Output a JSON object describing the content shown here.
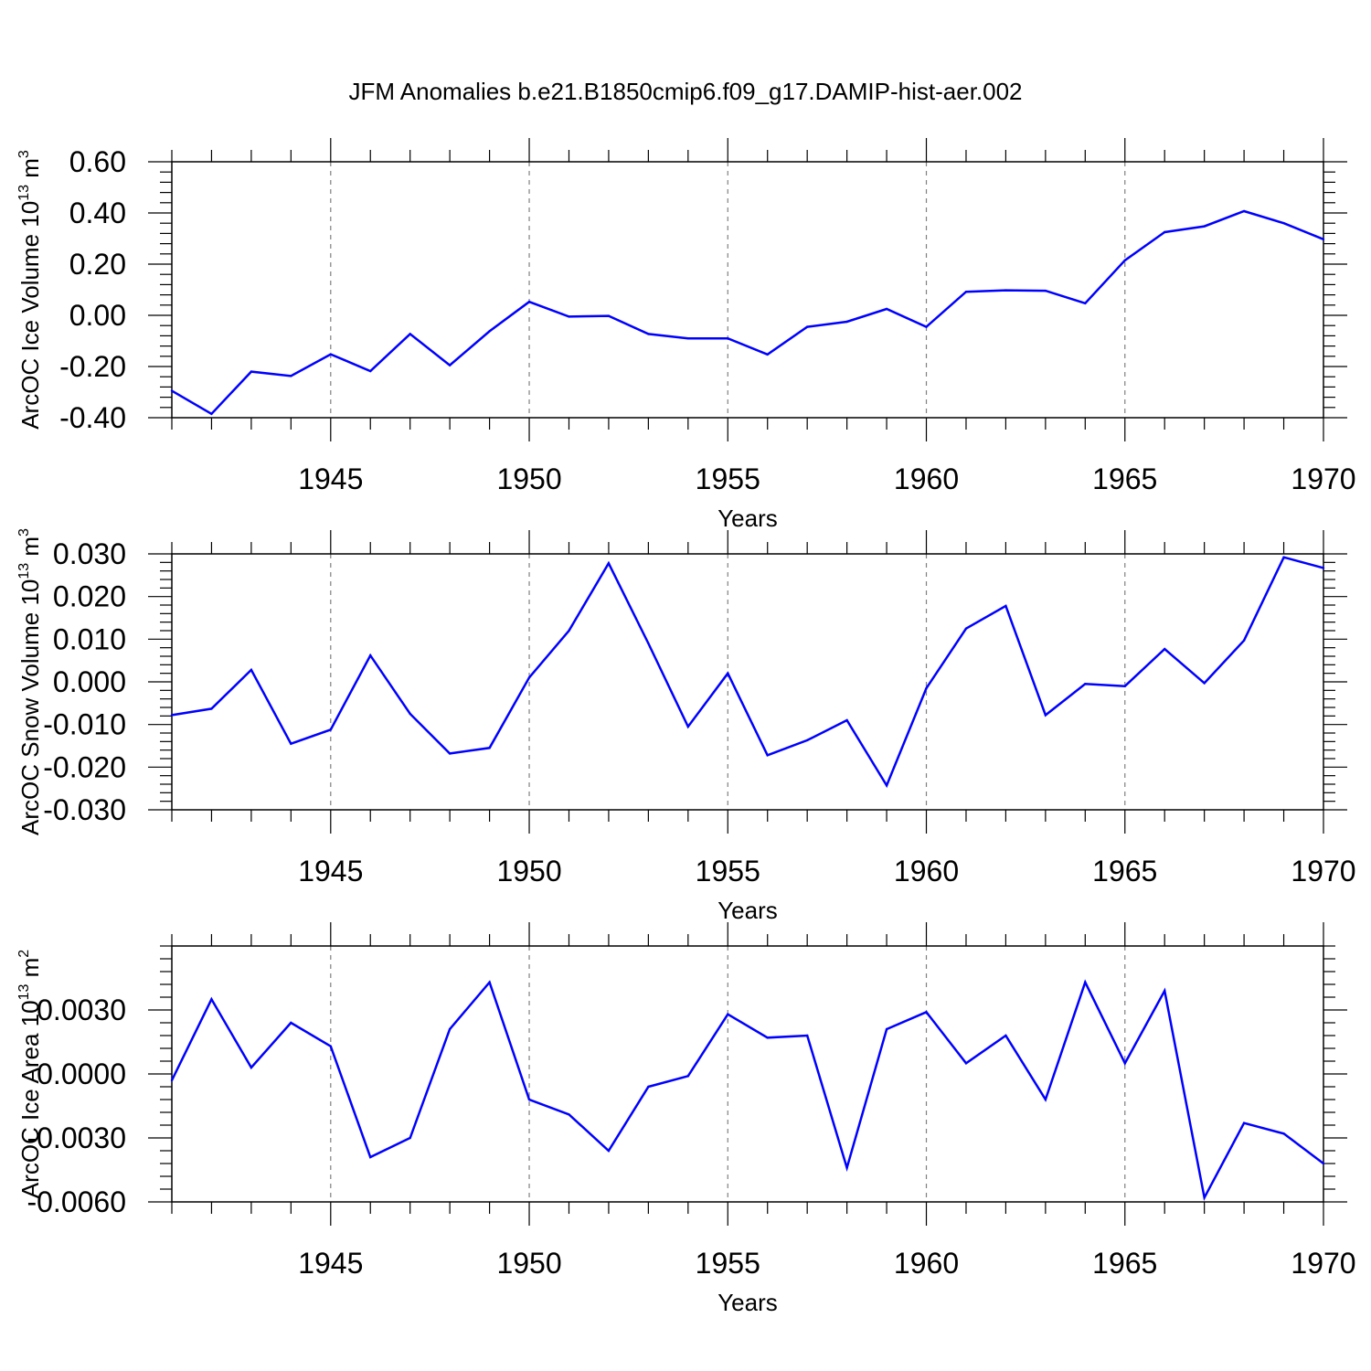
{
  "title": "JFM Anomalies b.e21.B1850cmip6.f09_g17.DAMIP-hist-aer.002",
  "colors": {
    "line": "#0000ff",
    "axis": "#000000",
    "grid": "#808080",
    "background": "#ffffff"
  },
  "chart_data": [
    {
      "type": "line",
      "ylabel": "ArcOC Ice Volume 10",
      "ylabel_exp": "13",
      "ylabel_unit": " m",
      "ylabel_unit_exp": "3",
      "xlabel": "Years",
      "xlim": [
        1941,
        1970
      ],
      "ylim": [
        -0.4,
        0.6
      ],
      "yticks": [
        -0.4,
        -0.2,
        0.0,
        0.2,
        0.4,
        0.6
      ],
      "ytick_labels": [
        "-0.40",
        "-0.20",
        "0.00",
        "0.20",
        "0.40",
        "0.60"
      ],
      "xticks": [
        1945,
        1950,
        1955,
        1960,
        1965,
        1970
      ],
      "xtick_labels": [
        "1945",
        "1950",
        "1955",
        "1960",
        "1965",
        "1970"
      ],
      "grid": "vertical-dashed",
      "x": [
        1941,
        1942,
        1943,
        1944,
        1945,
        1946,
        1947,
        1948,
        1949,
        1950,
        1951,
        1952,
        1953,
        1954,
        1955,
        1956,
        1957,
        1958,
        1959,
        1960,
        1961,
        1962,
        1963,
        1964,
        1965,
        1966,
        1967,
        1968,
        1969,
        1970
      ],
      "values": [
        -0.295,
        -0.385,
        -0.22,
        -0.237,
        -0.152,
        -0.218,
        -0.073,
        -0.195,
        -0.062,
        0.053,
        -0.005,
        -0.002,
        -0.073,
        -0.09,
        -0.09,
        -0.153,
        -0.045,
        -0.025,
        0.025,
        -0.045,
        0.092,
        0.098,
        0.096,
        0.047,
        0.215,
        0.325,
        0.348,
        0.407,
        0.36,
        0.297
      ]
    },
    {
      "type": "line",
      "ylabel": "ArcOC Snow Volume 10",
      "ylabel_exp": "13",
      "ylabel_unit": " m",
      "ylabel_unit_exp": "3",
      "xlabel": "Years",
      "xlim": [
        1941,
        1970
      ],
      "ylim": [
        -0.03,
        0.03
      ],
      "yticks": [
        -0.03,
        -0.02,
        -0.01,
        0.0,
        0.01,
        0.02,
        0.03
      ],
      "ytick_labels": [
        "-0.030",
        "-0.020",
        "-0.010",
        "0.000",
        "0.010",
        "0.020",
        "0.030"
      ],
      "xticks": [
        1945,
        1950,
        1955,
        1960,
        1965,
        1970
      ],
      "xtick_labels": [
        "1945",
        "1950",
        "1955",
        "1960",
        "1965",
        "1970"
      ],
      "grid": "vertical-dashed",
      "x": [
        1941,
        1942,
        1943,
        1944,
        1945,
        1946,
        1947,
        1948,
        1949,
        1950,
        1951,
        1952,
        1953,
        1954,
        1955,
        1956,
        1957,
        1958,
        1959,
        1960,
        1961,
        1962,
        1963,
        1964,
        1965,
        1966,
        1967,
        1968,
        1969,
        1970
      ],
      "values": [
        -0.0078,
        -0.0063,
        0.0028,
        -0.0145,
        -0.0112,
        0.0062,
        -0.0075,
        -0.0168,
        -0.0155,
        0.001,
        0.012,
        0.0278,
        0.009,
        -0.0105,
        0.002,
        -0.0172,
        -0.0137,
        -0.009,
        -0.0243,
        -0.0015,
        0.0125,
        0.0178,
        -0.0078,
        -0.0005,
        -0.001,
        0.0077,
        -0.0003,
        0.0097,
        0.0292,
        0.0267
      ]
    },
    {
      "type": "line",
      "ylabel": "ArcOC Ice Area 10",
      "ylabel_exp": "13",
      "ylabel_unit": " m",
      "ylabel_unit_exp": "2",
      "xlabel": "Years",
      "xlim": [
        1941,
        1970
      ],
      "ylim": [
        -0.006,
        0.006
      ],
      "yticks": [
        -0.006,
        -0.003,
        0.0,
        0.003
      ],
      "ytick_labels": [
        "-0.0060",
        "-0.0030",
        "0.0000",
        "0.0030"
      ],
      "xticks": [
        1945,
        1950,
        1955,
        1960,
        1965,
        1970
      ],
      "xtick_labels": [
        "1945",
        "1950",
        "1955",
        "1960",
        "1965",
        "1970"
      ],
      "grid": "vertical-dashed",
      "x": [
        1941,
        1942,
        1943,
        1944,
        1945,
        1946,
        1947,
        1948,
        1949,
        1950,
        1951,
        1952,
        1953,
        1954,
        1955,
        1956,
        1957,
        1958,
        1959,
        1960,
        1961,
        1962,
        1963,
        1964,
        1965,
        1966,
        1967,
        1968,
        1969,
        1970
      ],
      "values": [
        -0.0003,
        0.0035,
        0.0003,
        0.0024,
        0.0013,
        -0.0039,
        -0.003,
        0.0021,
        0.0043,
        -0.0012,
        -0.0019,
        -0.0036,
        -0.0006,
        -0.0001,
        0.0028,
        0.0017,
        0.0018,
        -0.0044,
        0.0021,
        0.0029,
        0.0005,
        0.0018,
        -0.0012,
        0.0043,
        0.0005,
        0.0039,
        -0.0058,
        -0.0023,
        -0.0028,
        -0.0042
      ]
    }
  ]
}
